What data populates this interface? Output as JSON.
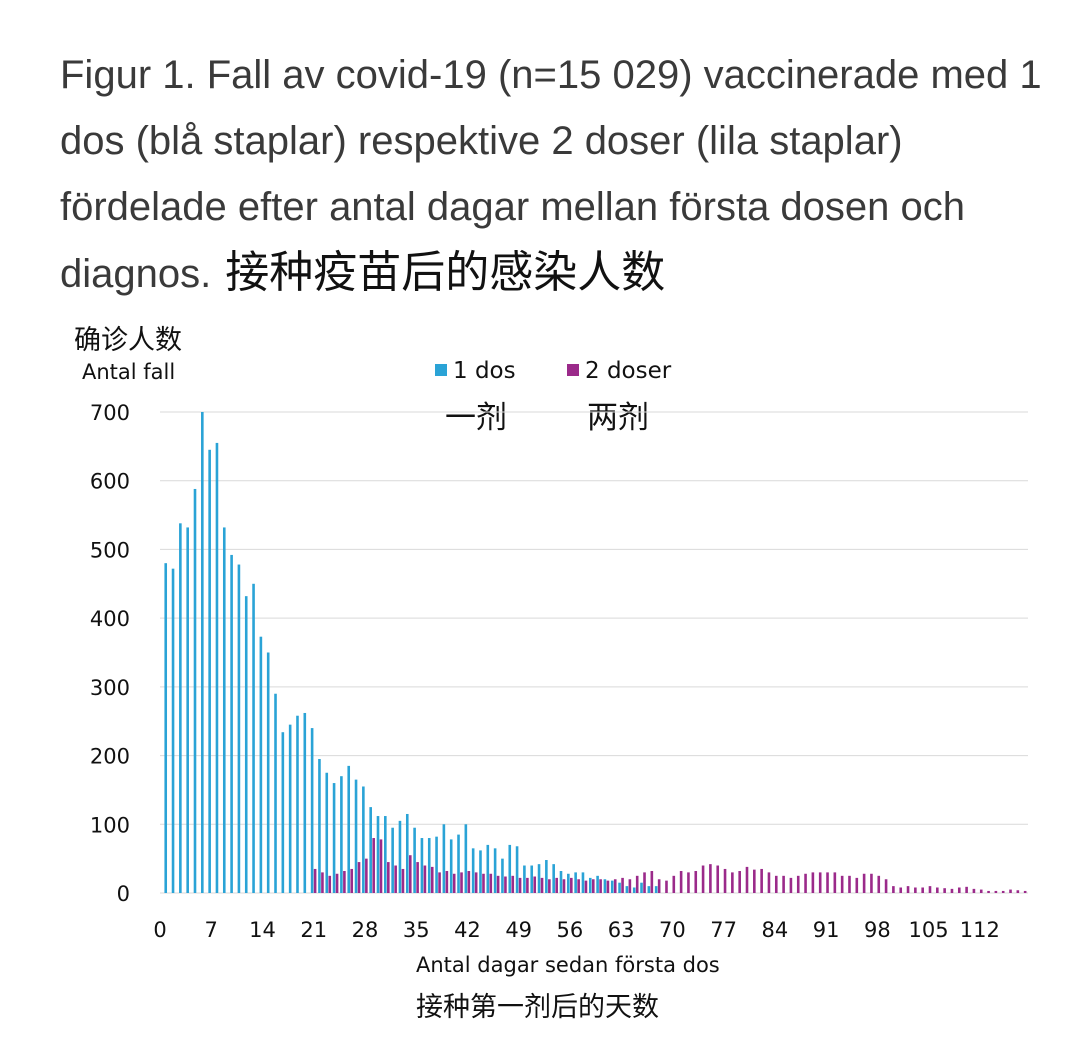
{
  "title": {
    "text": "Figur 1. Fall av covid-19 (n=15 029) vaccinerade med 1 dos (blå staplar) respektive 2 doser (lila staplar) fördelade efter antal dagar mellan första dosen och diagnos.",
    "annotation_cn": "接种疫苗后的感染人数"
  },
  "chart_data": {
    "type": "bar",
    "xlabel": "Antal dagar sedan första dos",
    "xlabel_cn": "接种第一剂后的天数",
    "ylabel": "Antal fall",
    "ylabel_cn": "确诊人数",
    "ylim": [
      0,
      700
    ],
    "yticks": [
      "0",
      "100",
      "200",
      "300",
      "400",
      "500",
      "600",
      "700"
    ],
    "xticks": [
      "0",
      "7",
      "14",
      "21",
      "28",
      "35",
      "42",
      "49",
      "56",
      "63",
      "70",
      "77",
      "84",
      "91",
      "98",
      "105",
      "112"
    ],
    "grid": true,
    "legend_position": "top-center",
    "series": [
      {
        "name": "1 dos",
        "name_cn": "一剂",
        "color": "#2aa3d6",
        "start_day": 1,
        "values": [
          480,
          472,
          538,
          532,
          588,
          700,
          645,
          655,
          532,
          492,
          478,
          432,
          450,
          373,
          350,
          290,
          234,
          245,
          258,
          262,
          240,
          195,
          175,
          160,
          170,
          185,
          165,
          155,
          125,
          112,
          112,
          95,
          105,
          115,
          95,
          80,
          80,
          82,
          100,
          78,
          85,
          100,
          65,
          62,
          70,
          65,
          50,
          70,
          68,
          40,
          40,
          42,
          48,
          42,
          32,
          28,
          30,
          30,
          22,
          25,
          20,
          18,
          15,
          10,
          8,
          15,
          10,
          10
        ]
      },
      {
        "name": "2 doser",
        "name_cn": "两剂",
        "color": "#9b2a8a",
        "start_day": 21,
        "values": [
          35,
          30,
          25,
          28,
          32,
          35,
          45,
          50,
          80,
          78,
          45,
          40,
          35,
          55,
          45,
          40,
          38,
          30,
          32,
          28,
          30,
          32,
          30,
          28,
          28,
          25,
          24,
          25,
          22,
          22,
          24,
          22,
          20,
          22,
          20,
          22,
          20,
          18,
          20,
          20,
          18,
          20,
          22,
          20,
          25,
          30,
          32,
          20,
          18,
          25,
          32,
          30,
          32,
          40,
          42,
          40,
          35,
          30,
          32,
          38,
          34,
          35,
          30,
          25,
          25,
          22,
          25,
          28,
          30,
          30,
          30,
          30,
          25,
          25,
          22,
          28,
          28,
          25,
          20,
          10,
          8,
          10,
          8,
          8,
          10,
          8,
          7,
          6,
          8,
          9,
          6,
          5,
          3,
          3,
          3,
          5,
          4,
          3
        ]
      }
    ]
  }
}
